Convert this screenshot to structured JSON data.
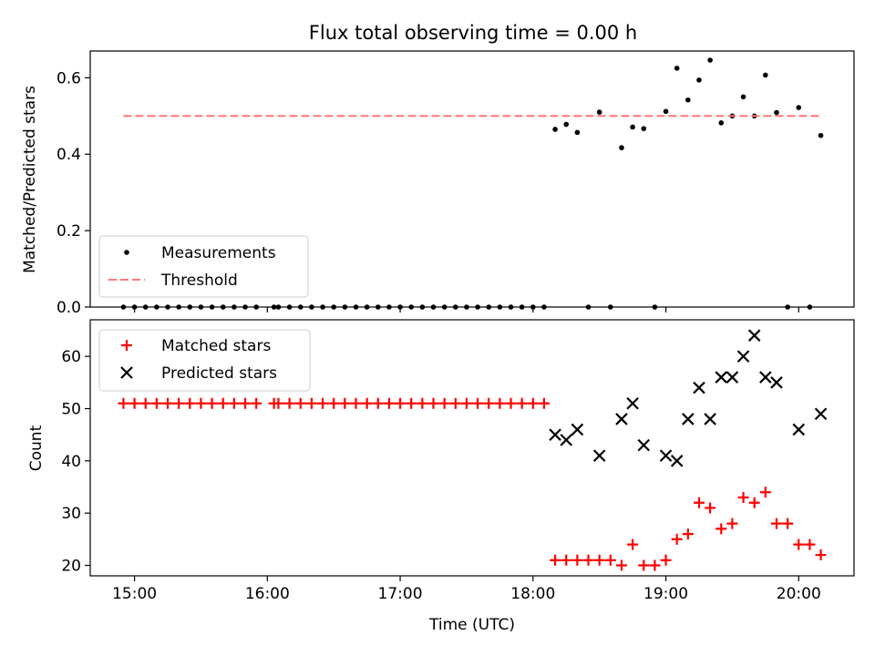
{
  "figure": {
    "title": "Flux total observing time = 0.00 h",
    "xlabel": "Time (UTC)"
  },
  "chart_data": [
    {
      "type": "scatter",
      "ylabel": "Matched/Predicted stars",
      "xlim": [
        "14:40",
        "20:25"
      ],
      "ylim": [
        0,
        0.67
      ],
      "yticks": [
        0.0,
        0.2,
        0.4,
        0.6
      ],
      "ytick_labels": [
        "0.0",
        "0.2",
        "0.4",
        "0.6"
      ],
      "xticks": [
        "15:00",
        "16:00",
        "17:00",
        "18:00",
        "19:00",
        "20:00"
      ],
      "legend": "lower-left",
      "grid": false,
      "series": [
        {
          "name": "Measurements",
          "marker": "dot",
          "color": "#000000",
          "points": [
            [
              "14:55",
              0.0
            ],
            [
              "15:00",
              0.0
            ],
            [
              "15:05",
              0.0
            ],
            [
              "15:10",
              0.0
            ],
            [
              "15:15",
              0.0
            ],
            [
              "15:20",
              0.0
            ],
            [
              "15:25",
              0.0
            ],
            [
              "15:30",
              0.0
            ],
            [
              "15:35",
              0.0
            ],
            [
              "15:40",
              0.0
            ],
            [
              "15:45",
              0.0
            ],
            [
              "15:50",
              0.0
            ],
            [
              "15:55",
              0.0
            ],
            [
              "16:03",
              0.0
            ],
            [
              "16:05",
              0.0
            ],
            [
              "16:10",
              0.0
            ],
            [
              "16:15",
              0.0
            ],
            [
              "16:20",
              0.0
            ],
            [
              "16:25",
              0.0
            ],
            [
              "16:30",
              0.0
            ],
            [
              "16:35",
              0.0
            ],
            [
              "16:40",
              0.0
            ],
            [
              "16:45",
              0.0
            ],
            [
              "16:50",
              0.0
            ],
            [
              "16:55",
              0.0
            ],
            [
              "17:00",
              0.0
            ],
            [
              "17:05",
              0.0
            ],
            [
              "17:10",
              0.0
            ],
            [
              "17:15",
              0.0
            ],
            [
              "17:20",
              0.0
            ],
            [
              "17:25",
              0.0
            ],
            [
              "17:30",
              0.0
            ],
            [
              "17:35",
              0.0
            ],
            [
              "17:40",
              0.0
            ],
            [
              "17:45",
              0.0
            ],
            [
              "17:50",
              0.0
            ],
            [
              "17:55",
              0.0
            ],
            [
              "18:00",
              0.0
            ],
            [
              "18:05",
              0.0
            ],
            [
              "18:10",
              0.465
            ],
            [
              "18:15",
              0.478
            ],
            [
              "18:20",
              0.457
            ],
            [
              "18:25",
              0.0
            ],
            [
              "18:30",
              0.51
            ],
            [
              "18:35",
              0.0
            ],
            [
              "18:40",
              0.417
            ],
            [
              "18:45",
              0.471
            ],
            [
              "18:50",
              0.467
            ],
            [
              "18:55",
              0.0
            ],
            [
              "19:00",
              0.512
            ],
            [
              "19:05",
              0.625
            ],
            [
              "19:10",
              0.542
            ],
            [
              "19:15",
              0.594
            ],
            [
              "19:20",
              0.646
            ],
            [
              "19:25",
              0.482
            ],
            [
              "19:30",
              0.5
            ],
            [
              "19:35",
              0.55
            ],
            [
              "19:40",
              0.5
            ],
            [
              "19:45",
              0.607
            ],
            [
              "19:50",
              0.509
            ],
            [
              "19:55",
              0.0
            ],
            [
              "20:00",
              0.522
            ],
            [
              "20:05",
              0.0
            ],
            [
              "20:10",
              0.449
            ]
          ]
        },
        {
          "name": "Threshold",
          "type": "line",
          "style": "dashed",
          "color": "#ff7777",
          "x": [
            "14:55",
            "20:10"
          ],
          "y": [
            0.5,
            0.5
          ]
        }
      ]
    },
    {
      "type": "scatter",
      "ylabel": "Count",
      "xlim": [
        "14:40",
        "20:25"
      ],
      "ylim": [
        18,
        67
      ],
      "yticks": [
        20,
        30,
        40,
        50,
        60
      ],
      "ytick_labels": [
        "20",
        "30",
        "40",
        "50",
        "60"
      ],
      "xticks": [
        "15:00",
        "16:00",
        "17:00",
        "18:00",
        "19:00",
        "20:00"
      ],
      "legend": "top-left",
      "grid": false,
      "series": [
        {
          "name": "Matched stars",
          "marker": "plus",
          "color": "#ff0000",
          "points": [
            [
              "14:55",
              51
            ],
            [
              "15:00",
              51
            ],
            [
              "15:05",
              51
            ],
            [
              "15:10",
              51
            ],
            [
              "15:15",
              51
            ],
            [
              "15:20",
              51
            ],
            [
              "15:25",
              51
            ],
            [
              "15:30",
              51
            ],
            [
              "15:35",
              51
            ],
            [
              "15:40",
              51
            ],
            [
              "15:45",
              51
            ],
            [
              "15:50",
              51
            ],
            [
              "15:55",
              51
            ],
            [
              "16:03",
              51
            ],
            [
              "16:05",
              51
            ],
            [
              "16:10",
              51
            ],
            [
              "16:15",
              51
            ],
            [
              "16:20",
              51
            ],
            [
              "16:25",
              51
            ],
            [
              "16:30",
              51
            ],
            [
              "16:35",
              51
            ],
            [
              "16:40",
              51
            ],
            [
              "16:45",
              51
            ],
            [
              "16:50",
              51
            ],
            [
              "16:55",
              51
            ],
            [
              "17:00",
              51
            ],
            [
              "17:05",
              51
            ],
            [
              "17:10",
              51
            ],
            [
              "17:15",
              51
            ],
            [
              "17:20",
              51
            ],
            [
              "17:25",
              51
            ],
            [
              "17:30",
              51
            ],
            [
              "17:35",
              51
            ],
            [
              "17:40",
              51
            ],
            [
              "17:45",
              51
            ],
            [
              "17:50",
              51
            ],
            [
              "17:55",
              51
            ],
            [
              "18:00",
              51
            ],
            [
              "18:05",
              51
            ],
            [
              "18:10",
              21
            ],
            [
              "18:15",
              21
            ],
            [
              "18:20",
              21
            ],
            [
              "18:25",
              21
            ],
            [
              "18:30",
              21
            ],
            [
              "18:35",
              21
            ],
            [
              "18:40",
              20
            ],
            [
              "18:45",
              24
            ],
            [
              "18:50",
              20
            ],
            [
              "18:55",
              20
            ],
            [
              "19:00",
              21
            ],
            [
              "19:05",
              25
            ],
            [
              "19:10",
              26
            ],
            [
              "19:15",
              32
            ],
            [
              "19:20",
              31
            ],
            [
              "19:25",
              27
            ],
            [
              "19:30",
              28
            ],
            [
              "19:35",
              33
            ],
            [
              "19:40",
              32
            ],
            [
              "19:45",
              34
            ],
            [
              "19:50",
              28
            ],
            [
              "19:55",
              28
            ],
            [
              "20:00",
              24
            ],
            [
              "20:05",
              24
            ],
            [
              "20:10",
              22
            ]
          ]
        },
        {
          "name": "Predicted stars",
          "marker": "x",
          "color": "#000000",
          "points": [
            [
              "18:10",
              45
            ],
            [
              "18:15",
              44
            ],
            [
              "18:20",
              46
            ],
            [
              "18:30",
              41
            ],
            [
              "18:40",
              48
            ],
            [
              "18:45",
              51
            ],
            [
              "18:50",
              43
            ],
            [
              "19:00",
              41
            ],
            [
              "19:05",
              40
            ],
            [
              "19:10",
              48
            ],
            [
              "19:15",
              54
            ],
            [
              "19:20",
              48
            ],
            [
              "19:25",
              56
            ],
            [
              "19:30",
              56
            ],
            [
              "19:35",
              60
            ],
            [
              "19:40",
              64
            ],
            [
              "19:45",
              56
            ],
            [
              "19:50",
              55
            ],
            [
              "20:00",
              46
            ],
            [
              "20:10",
              49
            ]
          ]
        }
      ]
    }
  ]
}
